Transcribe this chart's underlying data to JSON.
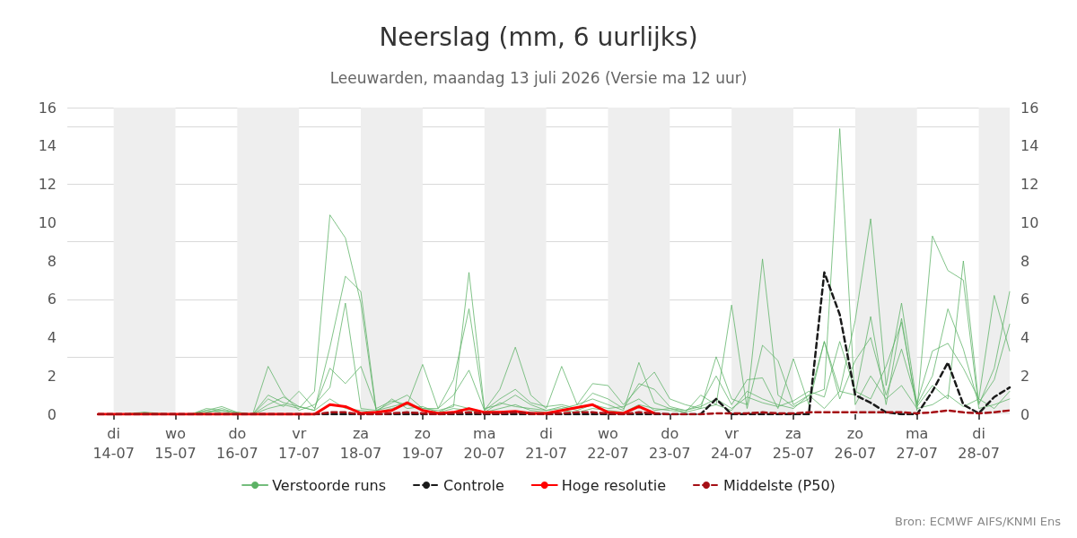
{
  "chart_data": {
    "type": "line",
    "title": "Neerslag (mm, 6 uurlijks)",
    "subtitle": "Leeuwarden, maandag 13 juli 2026 (Versie ma 12 uur)",
    "annotations": [
      "Bron: ECMWF AIFS/KNMI Ens"
    ],
    "x": [
      "2026-07-13T18:00",
      "2026-07-14T00:00",
      "2026-07-14T06:00",
      "2026-07-14T12:00",
      "2026-07-14T18:00",
      "2026-07-15T00:00",
      "2026-07-15T06:00",
      "2026-07-15T12:00",
      "2026-07-15T18:00",
      "2026-07-16T00:00",
      "2026-07-16T06:00",
      "2026-07-16T12:00",
      "2026-07-16T18:00",
      "2026-07-17T00:00",
      "2026-07-17T06:00",
      "2026-07-17T12:00",
      "2026-07-17T18:00",
      "2026-07-18T00:00",
      "2026-07-18T06:00",
      "2026-07-18T12:00",
      "2026-07-18T18:00",
      "2026-07-19T00:00",
      "2026-07-19T06:00",
      "2026-07-19T12:00",
      "2026-07-19T18:00",
      "2026-07-20T00:00",
      "2026-07-20T06:00",
      "2026-07-20T12:00",
      "2026-07-20T18:00",
      "2026-07-21T00:00",
      "2026-07-21T06:00",
      "2026-07-21T12:00",
      "2026-07-21T18:00",
      "2026-07-22T00:00",
      "2026-07-22T06:00",
      "2026-07-22T12:00",
      "2026-07-22T18:00",
      "2026-07-23T00:00",
      "2026-07-23T06:00",
      "2026-07-23T12:00",
      "2026-07-23T18:00",
      "2026-07-24T00:00",
      "2026-07-24T06:00",
      "2026-07-24T12:00",
      "2026-07-24T18:00",
      "2026-07-25T00:00",
      "2026-07-25T06:00",
      "2026-07-25T12:00",
      "2026-07-25T18:00",
      "2026-07-26T00:00",
      "2026-07-26T06:00",
      "2026-07-26T12:00",
      "2026-07-26T18:00",
      "2026-07-27T00:00",
      "2026-07-27T06:00",
      "2026-07-27T12:00",
      "2026-07-27T18:00",
      "2026-07-28T00:00",
      "2026-07-28T06:00",
      "2026-07-28T12:00"
    ],
    "series": [
      {
        "name": "Verstoorde runs",
        "color": "#5cb265",
        "line_style": "solid",
        "values": [
          null,
          null,
          0,
          0.05,
          0,
          0,
          0,
          0.1,
          0.2,
          0,
          0,
          0.3,
          0.5,
          0.3,
          1.2,
          10.4,
          9.2,
          5.8,
          0.1,
          0.3,
          0.5,
          0.2,
          0.1,
          0.3,
          0.2,
          0.1,
          0.3,
          0.5,
          0.2,
          0.1,
          0.2,
          0.1,
          0.3,
          0.2,
          0.1,
          0.5,
          0.3,
          0.2,
          0.1,
          0.3,
          0.5,
          0.2,
          1.2,
          0.8,
          0.5,
          0.3,
          1.0,
          1.3,
          14.9,
          0.5,
          2.0,
          0.8,
          1.5,
          0.3,
          0.5,
          1.0,
          0.4,
          0.8,
          0.3,
          1.2
        ]
      },
      {
        "color": "#5cb265",
        "line_style": "solid",
        "values": [
          null,
          null,
          0,
          0.1,
          0.05,
          0,
          0,
          0.2,
          0.4,
          0.1,
          0,
          1.0,
          0.6,
          0.4,
          0.2,
          3.5,
          7.2,
          6.4,
          0.2,
          0.4,
          0.6,
          0.3,
          0.2,
          0.4,
          7.4,
          0.3,
          0.5,
          1.0,
          0.5,
          0.2,
          0.3,
          0.5,
          1.6,
          1.5,
          0.5,
          1.4,
          2.2,
          0.8,
          0.5,
          0.3,
          3.0,
          0.8,
          0.5,
          8.1,
          1.0,
          0.4,
          0.8,
          3.8,
          1.2,
          4.9,
          10.2,
          1.5,
          5.8,
          0.5,
          2.0,
          5.5,
          3.4,
          0.5,
          2.4,
          6.4
        ]
      },
      {
        "color": "#5cb265",
        "line_style": "solid",
        "values": [
          null,
          null,
          0,
          0.02,
          0,
          0,
          0,
          0.1,
          0.3,
          0.05,
          0,
          2.5,
          1.0,
          0.2,
          0.5,
          1.4,
          5.8,
          0.3,
          0.2,
          0.6,
          1.0,
          0.3,
          0.3,
          1.8,
          5.5,
          0.2,
          1.3,
          3.5,
          1.0,
          0.3,
          2.5,
          0.5,
          0.8,
          0.5,
          0.2,
          2.7,
          0.6,
          0.3,
          0.1,
          1.0,
          0.5,
          5.7,
          0.3,
          3.6,
          2.8,
          0.5,
          1.0,
          0.3,
          1.2,
          1.0,
          5.1,
          0.5,
          5.0,
          0.2,
          9.3,
          7.5,
          7.0,
          0.3,
          0.5,
          0.8
        ]
      },
      {
        "color": "#5cb265",
        "line_style": "solid",
        "values": [
          null,
          null,
          0.05,
          0.1,
          0,
          0,
          0,
          0.3,
          0.2,
          0.1,
          0,
          0.8,
          0.4,
          1.2,
          0.3,
          2.4,
          1.6,
          2.5,
          0.3,
          0.7,
          0.5,
          2.6,
          0.3,
          1.0,
          2.3,
          0.2,
          0.8,
          1.3,
          0.6,
          0.4,
          0.5,
          0.3,
          1.1,
          0.8,
          0.3,
          1.6,
          1.3,
          0.4,
          0.2,
          0.5,
          2.0,
          0.5,
          1.8,
          1.9,
          0.3,
          2.9,
          0.5,
          3.8,
          0.8,
          2.8,
          4.0,
          1.0,
          3.4,
          0.6,
          3.3,
          3.7,
          2.4,
          0.8,
          6.2,
          3.3
        ]
      },
      {
        "color": "#5cb265",
        "line_style": "solid",
        "values": [
          null,
          null,
          0,
          0.05,
          0,
          0,
          0,
          0.2,
          0.1,
          0,
          0,
          0.5,
          0.9,
          0.4,
          0.2,
          0.8,
          0.3,
          0.2,
          0.1,
          0.8,
          0.3,
          0.4,
          0.1,
          0.5,
          0.3,
          0.1,
          0.6,
          0.4,
          0.3,
          0.2,
          0.4,
          0.2,
          0.5,
          0.3,
          0.4,
          0.8,
          0.2,
          0.3,
          0.2,
          0.4,
          0.8,
          0.3,
          0.9,
          0.6,
          0.4,
          0.7,
          1.2,
          0.9,
          3.8,
          1.2,
          0.8,
          2.5,
          4.8,
          0.4,
          1.5,
          0.8,
          8.0,
          0.6,
          1.8,
          4.7
        ]
      },
      {
        "name": "Controle",
        "color": "#1a1a1a",
        "line_style": "dashed",
        "values": [
          0,
          0,
          0,
          0,
          0,
          0,
          0,
          0,
          0,
          0,
          0,
          0,
          0,
          0,
          0,
          0,
          0,
          0,
          0,
          0,
          0,
          0,
          0,
          0,
          0,
          0,
          0,
          0,
          0,
          0,
          0,
          0,
          0,
          0,
          0,
          0,
          0,
          0,
          0,
          0,
          0.8,
          0,
          0,
          0,
          0,
          0,
          0,
          7.4,
          5.2,
          1.0,
          0.6,
          0.1,
          0,
          0,
          1.2,
          2.7,
          0.5,
          0.05,
          0.9,
          1.4
        ]
      },
      {
        "name": "Hoge resolutie",
        "color": "#ff0000",
        "line_style": "solid",
        "x": [
          "2026-07-13T18:00",
          "2026-07-14T00:00",
          "2026-07-14T06:00",
          "2026-07-14T12:00",
          "2026-07-14T18:00",
          "2026-07-15T00:00",
          "2026-07-15T06:00",
          "2026-07-15T12:00",
          "2026-07-15T18:00",
          "2026-07-16T00:00",
          "2026-07-16T06:00",
          "2026-07-16T12:00",
          "2026-07-16T18:00",
          "2026-07-17T00:00",
          "2026-07-17T06:00",
          "2026-07-17T12:00",
          "2026-07-17T18:00",
          "2026-07-18T00:00",
          "2026-07-18T06:00",
          "2026-07-18T12:00",
          "2026-07-18T18:00",
          "2026-07-19T00:00",
          "2026-07-19T06:00",
          "2026-07-19T12:00",
          "2026-07-19T18:00",
          "2026-07-20T00:00",
          "2026-07-20T06:00",
          "2026-07-20T12:00",
          "2026-07-20T18:00",
          "2026-07-21T00:00",
          "2026-07-21T06:00",
          "2026-07-21T12:00",
          "2026-07-21T18:00",
          "2026-07-22T00:00",
          "2026-07-22T06:00",
          "2026-07-22T12:00",
          "2026-07-22T18:00"
        ],
        "values": [
          0,
          0,
          0,
          0,
          0,
          0,
          0,
          0,
          0,
          0,
          0,
          0,
          0,
          0,
          0,
          0.5,
          0.4,
          0.05,
          0.1,
          0.2,
          0.6,
          0.2,
          0.05,
          0.1,
          0.3,
          0.1,
          0.1,
          0.15,
          0.05,
          0.05,
          0.2,
          0.35,
          0.5,
          0.1,
          0.05,
          0.4,
          0.05
        ]
      },
      {
        "name": "Middelste (P50)",
        "color": "#a50f15",
        "line_style": "dashed",
        "values": [
          0,
          0,
          0,
          0,
          0,
          0,
          0,
          0,
          0,
          0,
          0,
          0,
          0,
          0,
          0,
          0.1,
          0.1,
          0,
          0,
          0.05,
          0.1,
          0.05,
          0,
          0.05,
          0.1,
          0.05,
          0.05,
          0.1,
          0.05,
          0,
          0.05,
          0.1,
          0.1,
          0.05,
          0,
          0.1,
          0.05,
          0,
          0,
          0,
          0.05,
          0.05,
          0.05,
          0.1,
          0.05,
          0.05,
          0.1,
          0.1,
          0.1,
          0.1,
          0.1,
          0.1,
          0.1,
          0.05,
          0.1,
          0.2,
          0.1,
          0.05,
          0.1,
          0.2
        ]
      }
    ],
    "xlim": [
      "2026-07-13T06:00",
      "2026-07-28T12:00"
    ],
    "xticks": [
      {
        "value": "2026-07-14T00:00",
        "label": "di\n14-07"
      },
      {
        "value": "2026-07-15T00:00",
        "label": "wo\n15-07"
      },
      {
        "value": "2026-07-16T00:00",
        "label": "do\n16-07"
      },
      {
        "value": "2026-07-17T00:00",
        "label": "vr\n17-07"
      },
      {
        "value": "2026-07-18T00:00",
        "label": "za\n18-07"
      },
      {
        "value": "2026-07-19T00:00",
        "label": "zo\n19-07"
      },
      {
        "value": "2026-07-20T00:00",
        "label": "ma\n20-07"
      },
      {
        "value": "2026-07-21T00:00",
        "label": "di\n21-07"
      },
      {
        "value": "2026-07-22T00:00",
        "label": "wo\n22-07"
      },
      {
        "value": "2026-07-23T00:00",
        "label": "do\n23-07"
      },
      {
        "value": "2026-07-24T00:00",
        "label": "vr\n24-07"
      },
      {
        "value": "2026-07-25T00:00",
        "label": "za\n25-07"
      },
      {
        "value": "2026-07-26T00:00",
        "label": "zo\n26-07"
      },
      {
        "value": "2026-07-27T00:00",
        "label": "ma\n27-07"
      },
      {
        "value": "2026-07-28T00:00",
        "label": "di\n28-07"
      }
    ],
    "ylim": [
      0,
      16
    ],
    "yticks": [
      0,
      2,
      4,
      6,
      8,
      10,
      12,
      14,
      16
    ],
    "y2lim": [
      0,
      16
    ],
    "y2ticks": [
      0,
      2,
      4,
      6,
      8,
      10,
      12,
      14,
      16
    ],
    "bands": [
      {
        "axis": "x",
        "from": "2026-07-14T00:00",
        "to": "2026-07-15T00:00",
        "color": "#eeeeee"
      },
      {
        "axis": "x",
        "from": "2026-07-16T00:00",
        "to": "2026-07-17T00:00",
        "color": "#eeeeee"
      },
      {
        "axis": "x",
        "from": "2026-07-18T00:00",
        "to": "2026-07-19T00:00",
        "color": "#eeeeee"
      },
      {
        "axis": "x",
        "from": "2026-07-20T00:00",
        "to": "2026-07-21T00:00",
        "color": "#eeeeee"
      },
      {
        "axis": "x",
        "from": "2026-07-22T00:00",
        "to": "2026-07-23T00:00",
        "color": "#eeeeee"
      },
      {
        "axis": "x",
        "from": "2026-07-24T00:00",
        "to": "2026-07-25T00:00",
        "color": "#eeeeee"
      },
      {
        "axis": "x",
        "from": "2026-07-26T00:00",
        "to": "2026-07-27T00:00",
        "color": "#eeeeee"
      },
      {
        "axis": "x",
        "from": "2026-07-28T00:00",
        "to": "2026-07-28T12:00",
        "color": "#eeeeee"
      }
    ],
    "grid": "y",
    "legend": "bottom",
    "marker": "none"
  }
}
